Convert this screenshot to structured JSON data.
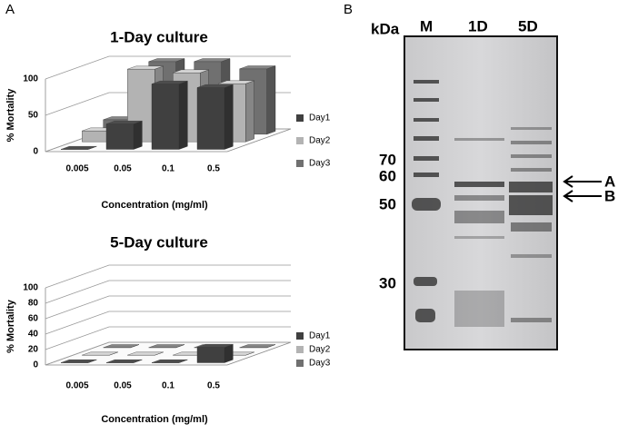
{
  "panels": [
    "A",
    "B"
  ],
  "gel": {
    "unit": "kDa",
    "lanes": [
      "M",
      "1D",
      "5D"
    ],
    "markers": [
      "70",
      "60",
      "50",
      "30"
    ],
    "arrows": [
      "A",
      "B"
    ]
  },
  "chart_data": [
    {
      "type": "bar3d",
      "title": "1-Day culture",
      "x_label": "Concentration (mg/ml)",
      "y_label": "% Mortality",
      "categories": [
        "0.005",
        "0.05",
        "0.1",
        "0.5"
      ],
      "series": [
        {
          "name": "Day1",
          "color": "#404040",
          "values": [
            0,
            35,
            90,
            85
          ]
        },
        {
          "name": "Day2",
          "color": "#b3b3b3",
          "values": [
            15,
            100,
            95,
            80
          ]
        },
        {
          "name": "Day3",
          "color": "#707070",
          "values": [
            20,
            100,
            100,
            90
          ]
        }
      ],
      "ylim": [
        0,
        100
      ],
      "yticks": [
        0,
        50,
        100
      ],
      "grid": true
    },
    {
      "type": "bar3d",
      "title": "5-Day culture",
      "x_label": "Concentration (mg/ml)",
      "y_label": "% Mortality",
      "categories": [
        "0.005",
        "0.05",
        "0.1",
        "0.5"
      ],
      "series": [
        {
          "name": "Day1",
          "color": "#404040",
          "values": [
            0,
            0,
            0,
            20
          ]
        },
        {
          "name": "Day2",
          "color": "#b3b3b3",
          "values": [
            0,
            0,
            0,
            0
          ]
        },
        {
          "name": "Day3",
          "color": "#707070",
          "values": [
            0,
            0,
            0,
            0
          ]
        }
      ],
      "ylim": [
        0,
        100
      ],
      "yticks": [
        0,
        20,
        40,
        60,
        80,
        100
      ],
      "grid": true
    }
  ]
}
